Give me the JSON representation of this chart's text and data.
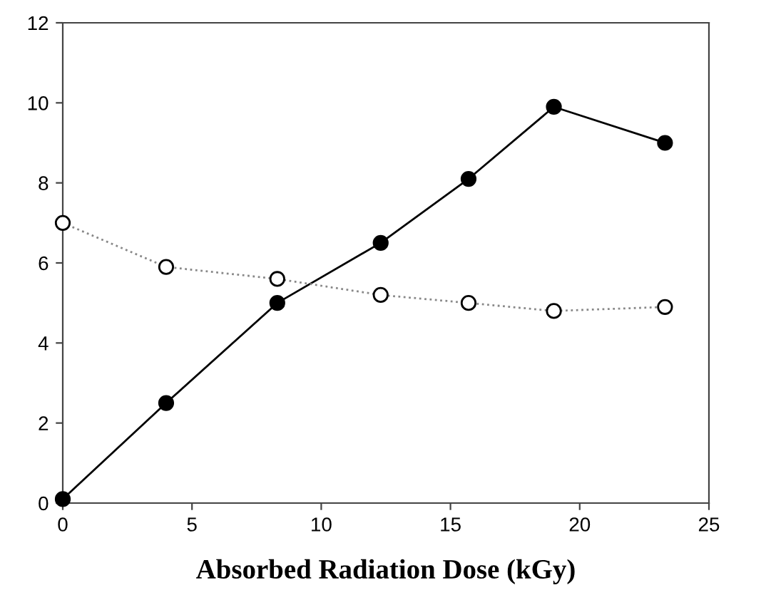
{
  "chart_data": {
    "type": "line",
    "xlabel": "Absorbed Radiation Dose (kGy)",
    "xlim": [
      0,
      25
    ],
    "xticks": [
      0,
      5,
      10,
      15,
      20,
      25
    ],
    "ylim": [
      0,
      12
    ],
    "yticks": [
      0,
      2,
      4,
      6,
      8,
      10,
      12
    ],
    "grid": false,
    "series": [
      {
        "x": [
          0,
          4,
          8.3,
          12.3,
          15.7,
          19,
          23.3
        ],
        "values": [
          0.1,
          2.5,
          5.0,
          6.5,
          8.1,
          9.9,
          9.0
        ],
        "color": "#000000",
        "marker": "circle",
        "line_style": "solid"
      },
      {
        "x": [
          0,
          4,
          8.3,
          12.3,
          15.7,
          19,
          23.3
        ],
        "values": [
          7.0,
          5.9,
          5.6,
          5.2,
          5.0,
          4.8,
          4.9
        ],
        "color": "#000000",
        "marker": "circle",
        "line_style": "dotted"
      }
    ]
  }
}
